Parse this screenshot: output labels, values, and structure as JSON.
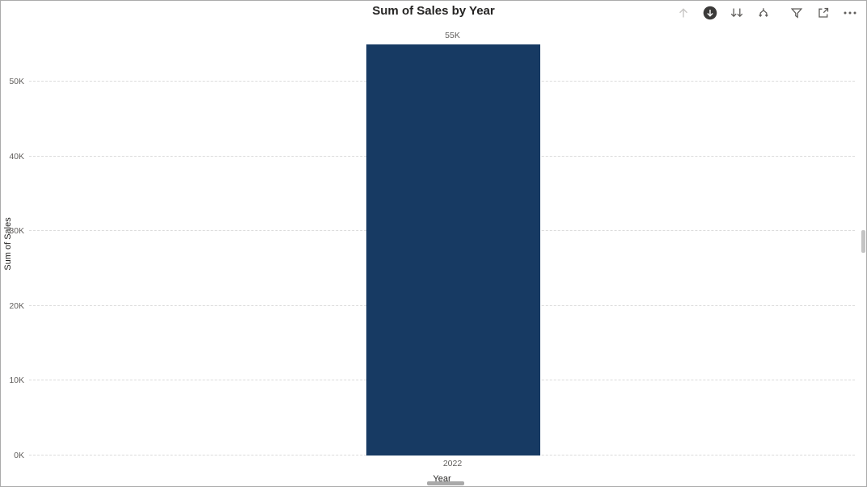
{
  "visual": {
    "title": "Sum of Sales by Year"
  },
  "toolbar": {
    "icons": [
      {
        "name": "drill-up",
        "enabled": false
      },
      {
        "name": "drill-down-mode",
        "enabled": true
      },
      {
        "name": "go-to-next-level",
        "enabled": true
      },
      {
        "name": "expand-all-down-one-level",
        "enabled": true
      },
      {
        "name": "filter",
        "enabled": true
      },
      {
        "name": "focus-mode",
        "enabled": true
      },
      {
        "name": "more-options",
        "enabled": true
      }
    ]
  },
  "chart_data": {
    "type": "bar",
    "title": "Sum of Sales by Year",
    "categories": [
      "2022"
    ],
    "values": [
      55000
    ],
    "data_labels": [
      "55K"
    ],
    "xlabel": "Year",
    "ylabel": "Sum of Sales",
    "ylim": [
      0,
      55000
    ],
    "yticks": [
      "0K",
      "10K",
      "20K",
      "30K",
      "40K",
      "50K"
    ],
    "grid": "dashed-horizontal",
    "legend": "none",
    "bar_color": "#173A63"
  },
  "colors": {
    "title_text": "#252423",
    "axis_text": "#605E5C",
    "gridline": "#DBDBDB",
    "border": "#ABABAB",
    "icon_enabled": "#5F5D5B",
    "icon_disabled": "#C8C6C4",
    "drill_mode_circle": "#3B3A39"
  }
}
